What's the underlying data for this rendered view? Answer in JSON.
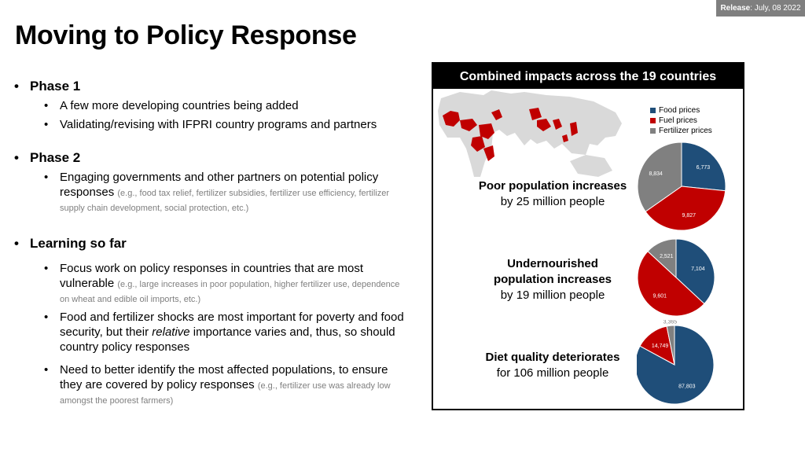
{
  "release": {
    "label": "Release",
    "date": ": July, 08 2022"
  },
  "title": "Moving to Policy Response",
  "phase1": {
    "heading": "Phase 1",
    "items": [
      "A few more developing countries being added",
      "Validating/revising with IFPRI country programs and partners"
    ]
  },
  "phase2": {
    "heading": "Phase 2",
    "item_main": "Engaging governments and other partners on potential policy responses",
    "item_note": "(e.g., food tax relief, fertilizer subsidies, fertilizer use efficiency, fertilizer supply chain development, social protection, etc.)"
  },
  "learning": {
    "heading": "Learning so far",
    "item1_main": "Focus work on policy responses in countries that are most vulnerable",
    "item1_note": "(e.g., large increases in poor population, higher fertilizer use, dependence on wheat and edible oil imports, etc.)",
    "item2_before": "Food and fertilizer shocks are most important for poverty and food security, but their ",
    "item2_italic": "relative",
    "item2_after": " importance varies and, thus, so should country policy responses",
    "item3_main": "Need to better identify the most affected populations, to ensure they are covered by policy responses",
    "item3_note": "(e.g., fertilizer use was already low amongst the poorest farmers)"
  },
  "panel": {
    "title": "Combined impacts across the 19 countries",
    "poor_l1": "Poor population increases",
    "poor_l2": "by 25 million people",
    "under_l1": "Undernourished",
    "under_l2": "population increases",
    "under_l3": "by 19 million people",
    "diet_l1": "Diet quality deteriorates",
    "diet_l2": "for 106 million people"
  },
  "colors": {
    "food": "#1f4e79",
    "fuel": "#c00000",
    "fertilizer": "#808080",
    "map_gray": "#d9d9d9",
    "map_red": "#c00000"
  },
  "chart_data": [
    {
      "type": "pie",
      "categories": [
        "Food prices",
        "Fuel prices",
        "Fertilizer prices"
      ],
      "values": [
        6773,
        9827,
        8834
      ],
      "labels": [
        "6,773",
        "9,827",
        "8,834"
      ]
    },
    {
      "type": "pie",
      "categories": [
        "Food prices",
        "Fuel prices",
        "Fertilizer prices"
      ],
      "values": [
        7104,
        9601,
        2521
      ],
      "labels": [
        "7,104",
        "9,601",
        "2,521"
      ]
    },
    {
      "type": "pie",
      "categories": [
        "Food prices",
        "Fuel prices",
        "Fertilizer prices"
      ],
      "values": [
        87803,
        14749,
        3365
      ],
      "labels": [
        "87,803",
        "14,749",
        "3,365"
      ]
    }
  ],
  "legend": [
    "Food prices",
    "Fuel prices",
    "Fertilizer prices"
  ]
}
